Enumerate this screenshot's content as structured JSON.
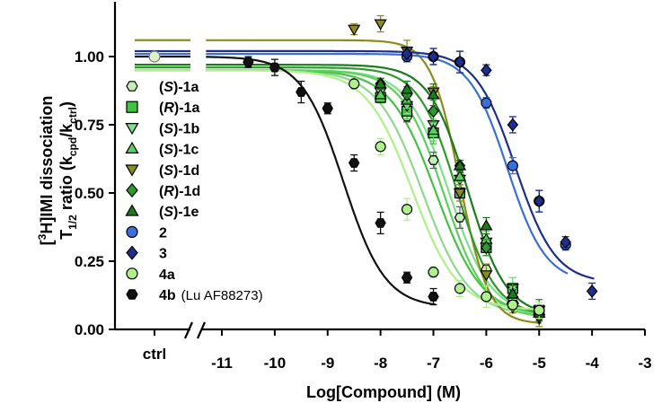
{
  "chart_data": {
    "type": "scatter",
    "xlabel": "Log[Compound] (M)",
    "ylabel_line1": "[3H]IMI dissociation",
    "ylabel_line2": "T1/2 ratio (kcpd/kctrl)",
    "ctrl_label": "ctrl",
    "xlim": [
      -11.5,
      -3
    ],
    "ylim": [
      0,
      1.25
    ],
    "x_ticks": [
      -11,
      -10,
      -9,
      -8,
      -7,
      -6,
      -5,
      -4,
      -3
    ],
    "x_tick_labels": [
      "-11",
      "-10",
      "-9",
      "-8",
      "-7",
      "-6",
      "-5",
      "-4",
      "-3"
    ],
    "y_ticks": [
      0,
      0.25,
      0.5,
      0.75,
      1.0
    ],
    "y_tick_labels": [
      "0.00",
      "0.25",
      "0.50",
      "0.75",
      "1.00"
    ],
    "ctrl_value": 1.0,
    "series": [
      {
        "name": "(S)-1a",
        "stereo": "S",
        "suffix": "-1a",
        "marker": "hexagon",
        "color": "#c4f0b4",
        "fit": {
          "top": 0.95,
          "bottom": 0.05,
          "ic50": -7.2,
          "hill": 1.0
        },
        "x": [
          -7.5,
          -7,
          -6.5,
          -6,
          -5.5,
          -5
        ],
        "y": [
          0.78,
          0.62,
          0.41,
          0.22,
          0.1,
          0.07
        ]
      },
      {
        "name": "(R)-1a",
        "stereo": "R",
        "suffix": "-1a",
        "marker": "square",
        "color": "#44c244",
        "fit": {
          "top": 0.95,
          "bottom": 0.05,
          "ic50": -6.95,
          "hill": 1.0
        },
        "x": [
          -8,
          -7.5,
          -7,
          -6.5,
          -6,
          -5.5,
          -5
        ],
        "y": [
          0.85,
          0.8,
          0.72,
          0.5,
          0.3,
          0.15,
          0.07
        ]
      },
      {
        "name": "(S)-1b",
        "stereo": "S",
        "suffix": "-1b",
        "marker": "triangle-down",
        "color": "#7fe08a",
        "fit": {
          "top": 0.95,
          "bottom": 0.05,
          "ic50": -6.7,
          "hill": 1.1
        },
        "x": [
          -8,
          -7.5,
          -7,
          -6.5,
          -6,
          -5.5,
          -5
        ],
        "y": [
          0.87,
          0.82,
          0.75,
          0.55,
          0.32,
          0.15,
          0.07
        ]
      },
      {
        "name": "(S)-1c",
        "stereo": "S",
        "suffix": "-1c",
        "marker": "triangle",
        "color": "#5cd05c",
        "fit": {
          "top": 0.95,
          "bottom": 0.04,
          "ic50": -6.8,
          "hill": 1.1
        },
        "x": [
          -8,
          -7.5,
          -7,
          -6.5,
          -6,
          -5.5,
          -5
        ],
        "y": [
          0.86,
          0.84,
          0.73,
          0.56,
          0.33,
          0.11,
          0.06
        ]
      },
      {
        "name": "(S)-1d",
        "stereo": "S",
        "suffix": "-1d",
        "marker": "triangle-down",
        "color": "#8c8c1a",
        "fit": {
          "top": 1.06,
          "bottom": 0.02,
          "ic50": -6.5,
          "hill": 1.6
        },
        "x": [
          -8.5,
          -8,
          -7.5,
          -7,
          -6.5,
          -6,
          -5.5,
          -5
        ],
        "y": [
          1.1,
          1.12,
          1.02,
          0.87,
          0.5,
          0.2,
          0.08,
          0.04
        ]
      },
      {
        "name": "(R)-1d",
        "stereo": "R",
        "suffix": "-1d",
        "marker": "diamond",
        "color": "#2e9a2e",
        "fit": {
          "top": 0.96,
          "bottom": 0.05,
          "ic50": -6.55,
          "hill": 1.2
        },
        "x": [
          -8,
          -7.5,
          -7,
          -6.5,
          -6,
          -5.5,
          -5
        ],
        "y": [
          0.9,
          0.86,
          0.8,
          0.6,
          0.3,
          0.12,
          0.05
        ]
      },
      {
        "name": "(S)-1e",
        "stereo": "S",
        "suffix": "-1e",
        "marker": "triangle",
        "color": "#1e7a1e",
        "fit": {
          "top": 0.97,
          "bottom": 0.05,
          "ic50": -6.35,
          "hill": 1.2
        },
        "x": [
          -8,
          -7.5,
          -7,
          -6.5,
          -6,
          -5.5,
          -5
        ],
        "y": [
          0.9,
          0.88,
          0.86,
          0.6,
          0.38,
          0.13,
          0.06
        ]
      },
      {
        "name": "2",
        "stereo": "",
        "suffix": "2",
        "marker": "circle",
        "color": "#3a6fd8",
        "fit": {
          "top": 1.01,
          "bottom": 0.17,
          "ic50": -5.6,
          "hill": 1.2
        },
        "x": [
          -7.5,
          -7,
          -6.5,
          -6,
          -5.5,
          -5,
          -4.5
        ],
        "y": [
          1.0,
          1.0,
          0.98,
          0.83,
          0.6,
          0.47,
          0.31
        ]
      },
      {
        "name": "3",
        "stereo": "",
        "suffix": "3",
        "marker": "diamond",
        "color": "#1e2e8c",
        "fit": {
          "top": 1.02,
          "bottom": 0.17,
          "ic50": -5.45,
          "hill": 1.15
        },
        "x": [
          -7.5,
          -7,
          -6.5,
          -6,
          -5.5,
          -5,
          -4.5,
          -4
        ],
        "y": [
          1.01,
          1.0,
          0.98,
          0.95,
          0.75,
          0.47,
          0.32,
          0.14
        ]
      },
      {
        "name": "4a",
        "stereo": "",
        "suffix": "4a",
        "marker": "circle",
        "color": "#aef08a",
        "fit": {
          "top": 0.95,
          "bottom": 0.07,
          "ic50": -7.4,
          "hill": 1.0
        },
        "x": [
          -8.5,
          -8,
          -7.5,
          -7,
          -6.5,
          -6,
          -5.5,
          -5
        ],
        "y": [
          0.9,
          0.67,
          0.44,
          0.21,
          0.15,
          0.12,
          0.09,
          0.07
        ]
      },
      {
        "name": "4b",
        "stereo": "",
        "suffix": "4b",
        "note": "(Lu AF88273)",
        "marker": "hexagon",
        "color": "#111111",
        "fit": {
          "top": 1.0,
          "bottom": 0.08,
          "ic50": -8.7,
          "hill": 1.1
        },
        "x": [
          -10.5,
          -10,
          -9.5,
          -9,
          -8.5,
          -8,
          -7.5,
          -7
        ],
        "y": [
          0.98,
          0.96,
          0.87,
          0.81,
          0.61,
          0.39,
          0.19,
          0.12
        ]
      }
    ]
  }
}
